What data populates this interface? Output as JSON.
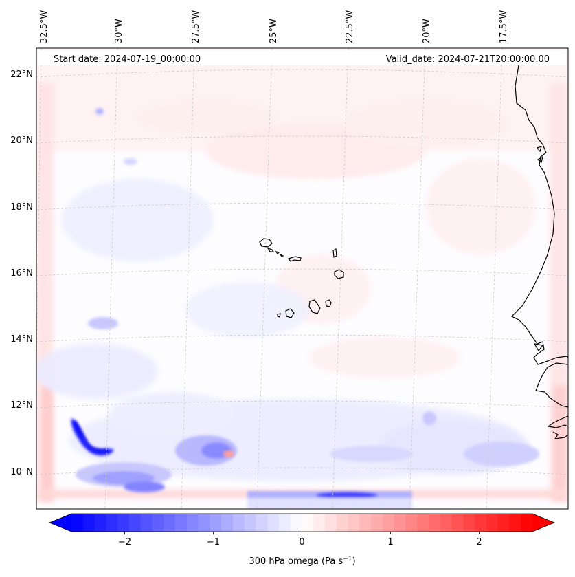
{
  "map": {
    "start_date": "Start date: 2024-07-19_00:00:00",
    "valid_date": "Valid_date: 2024-07-21T20:00:00.00",
    "lon_labels": [
      "32.5°W",
      "30°W",
      "27.5°W",
      "25°W",
      "22.5°W",
      "20°W",
      "17.5°W"
    ],
    "lat_labels": [
      "22°N",
      "20°N",
      "18°N",
      "16°N",
      "14°N",
      "12°N",
      "10°N"
    ],
    "coastline_color": "#000000",
    "gridline_color": "#c8c8c8"
  },
  "colorbar": {
    "label": "300 hPa omega (Pa s",
    "label_sup": "−1",
    "label_end": ")",
    "min": -2.6,
    "max": 2.6,
    "ticks": [
      {
        "value": -2,
        "label": "−2"
      },
      {
        "value": -1,
        "label": "−1"
      },
      {
        "value": 0,
        "label": "0"
      },
      {
        "value": 1,
        "label": "1"
      },
      {
        "value": 2,
        "label": "2"
      }
    ],
    "colors": {
      "negative": "#0000ff",
      "zero": "#ffffff",
      "positive": "#ff0000"
    },
    "levels": 40
  }
}
